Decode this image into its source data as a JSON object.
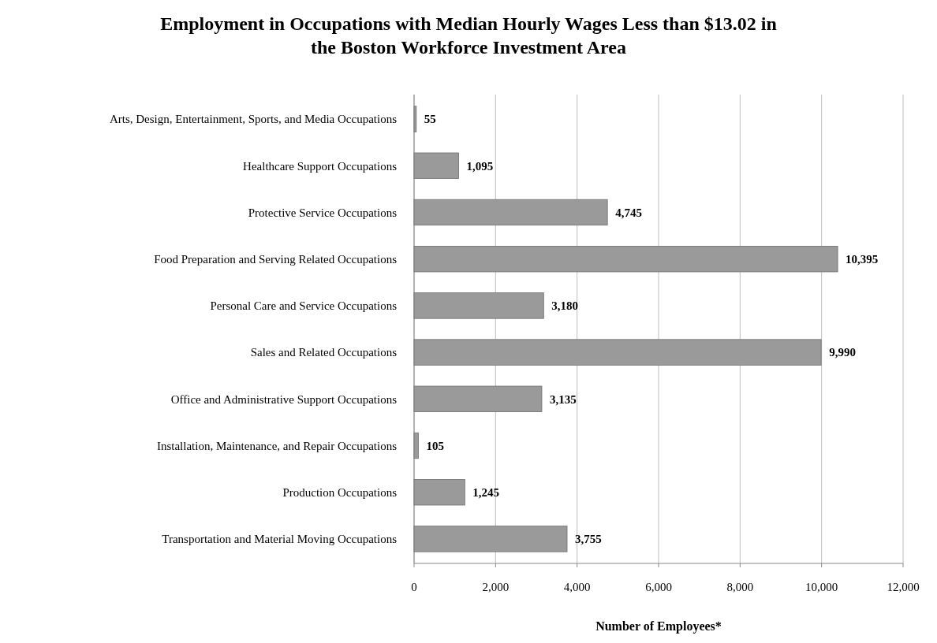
{
  "chart_data": {
    "type": "bar",
    "orientation": "horizontal",
    "title": "Employment in Occupations with Median Hourly Wages Less than $13.02 in the Boston Workforce Investment Area",
    "xlabel": "Number of Employees*",
    "categories": [
      "Arts, Design, Entertainment, Sports, and Media Occupations",
      "Healthcare Support Occupations",
      "Protective Service Occupations",
      "Food Preparation and Serving Related Occupations",
      "Personal Care and Service Occupations",
      "Sales and Related Occupations",
      "Office and Administrative Support Occupations",
      "Installation, Maintenance, and Repair Occupations",
      "Production Occupations",
      "Transportation and Material Moving Occupations"
    ],
    "values": [
      55,
      1095,
      4745,
      10395,
      3180,
      9990,
      3135,
      105,
      1245,
      3755
    ],
    "value_labels": [
      "55",
      "1,095",
      "4,745",
      "10,395",
      "3,180",
      "9,990",
      "3,135",
      "105",
      "1,245",
      "3,755"
    ],
    "color": "#9a9a9a",
    "xlim": [
      0,
      12000
    ],
    "xticks": [
      0,
      {
        "value": 2000,
        "label": "2,000"
      },
      {
        "value": 4000,
        "label": "4,000"
      },
      {
        "value": 6000,
        "label": "6,000"
      },
      {
        "value": 8000,
        "label": "8,000"
      },
      {
        "value": 10000,
        "label": "10,000"
      },
      {
        "value": 12000,
        "label": "12,000"
      }
    ],
    "grid": "x"
  }
}
